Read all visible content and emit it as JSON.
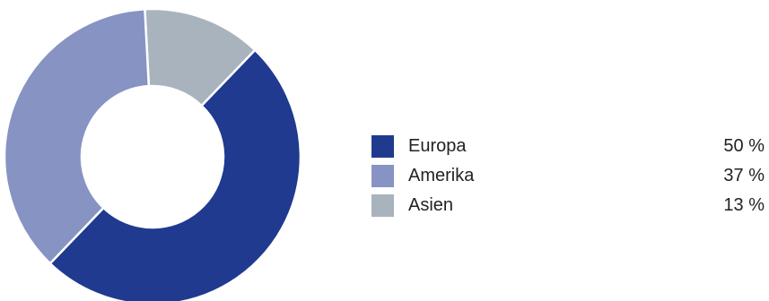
{
  "chart_data": {
    "type": "pie",
    "donut": true,
    "title": "",
    "legend_position": "right",
    "slices": [
      {
        "label": "Europa",
        "value": 50,
        "value_label": "50 %",
        "color": "#1f3a8f"
      },
      {
        "label": "Amerika",
        "value": 37,
        "value_label": "37 %",
        "color": "#8693c3"
      },
      {
        "label": "Asien",
        "value": 13,
        "value_label": "13 %",
        "color": "#a8b3bd"
      }
    ]
  }
}
